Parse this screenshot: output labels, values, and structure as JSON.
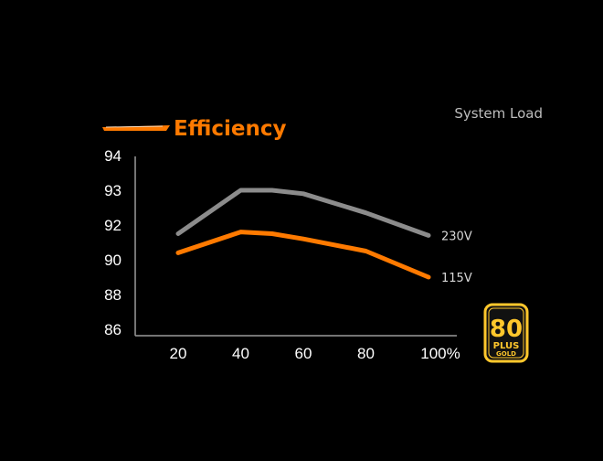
{
  "chart_data": {
    "type": "line",
    "title": "Efficiency",
    "xlabel": "System Load",
    "ylabel": "",
    "x": [
      20,
      30,
      40,
      50,
      60,
      70,
      80,
      90,
      100
    ],
    "x_tick_labels": [
      "20",
      "40",
      "60",
      "80",
      "100%"
    ],
    "x_tick_values": [
      20,
      40,
      60,
      80,
      100
    ],
    "xlim": [
      20,
      100
    ],
    "y_tick_labels": [
      "94",
      "93",
      "92",
      "90",
      "88",
      "86"
    ],
    "series": [
      {
        "name": "230V",
        "color": "#8c8c8c",
        "points": [
          [
            20,
            91.5
          ],
          [
            40,
            93.0
          ],
          [
            50,
            93.0
          ],
          [
            60,
            92.9
          ],
          [
            80,
            92.35
          ],
          [
            100,
            91.4
          ]
        ]
      },
      {
        "name": "115V",
        "color": "#ff7a00",
        "points": [
          [
            20,
            90.4
          ],
          [
            40,
            91.6
          ],
          [
            50,
            91.5
          ],
          [
            60,
            91.2
          ],
          [
            80,
            90.5
          ],
          [
            100,
            89.0
          ]
        ]
      }
    ],
    "grid": false,
    "legend": "top-left",
    "title_color": "#ff7a00"
  },
  "badge": {
    "number": "80",
    "plus": "PLUS",
    "level": "GOLD",
    "color": "#ffc72c"
  }
}
